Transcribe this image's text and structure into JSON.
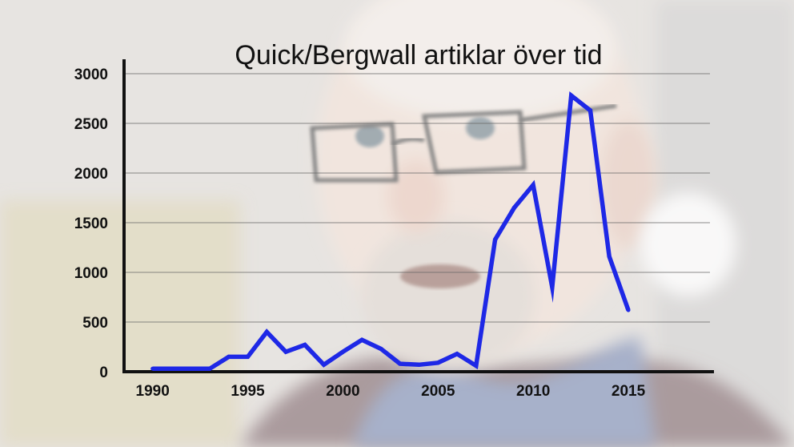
{
  "chart_data": {
    "type": "line",
    "title": "Quick/Bergwall artiklar över tid",
    "xlabel": "",
    "ylabel": "",
    "xlim": [
      1988.5,
      2019.5
    ],
    "ylim": [
      0,
      3000
    ],
    "x_ticks": [
      1990,
      1995,
      2000,
      2005,
      2010,
      2015
    ],
    "y_ticks": [
      0,
      500,
      1000,
      1500,
      2000,
      2500,
      3000
    ],
    "grid": true,
    "series": [
      {
        "color": "#1e28e6",
        "x": [
          1990,
          1991,
          1992,
          1993,
          1994,
          1995,
          1996,
          1997,
          1998,
          1999,
          2000,
          2001,
          2002,
          2003,
          2004,
          2005,
          2006,
          2007,
          2008,
          2009,
          2010,
          2011,
          2012,
          2013,
          2014,
          2015
        ],
        "values": [
          30,
          30,
          30,
          30,
          150,
          150,
          400,
          200,
          270,
          70,
          200,
          320,
          230,
          80,
          70,
          90,
          180,
          60,
          1330,
          1650,
          1880,
          850,
          2780,
          2630,
          1160,
          620
        ]
      }
    ]
  },
  "colors": {
    "axis": "#111111",
    "grid": "#666666",
    "line": "#1e28e6"
  }
}
